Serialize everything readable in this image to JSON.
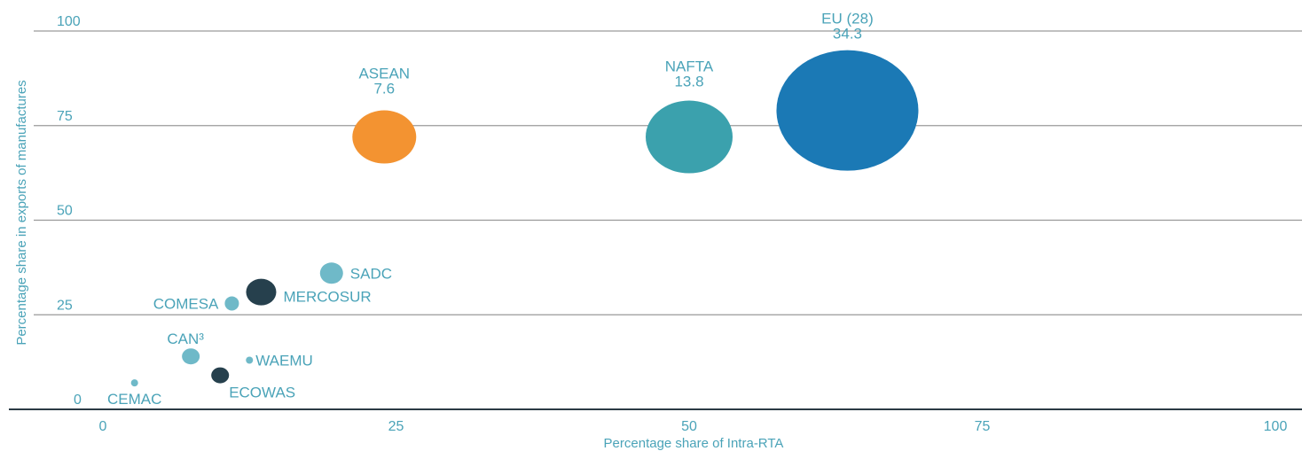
{
  "chart_data": {
    "type": "scatter",
    "xlabel": "Percentage share of Intra-RTA",
    "ylabel": "Percentage share in exports of manufactures",
    "xlim": [
      0,
      100
    ],
    "ylim": [
      0,
      100
    ],
    "xticks": [
      "0",
      "25",
      "50",
      "75",
      "100"
    ],
    "yticks": [
      "0",
      "25",
      "50",
      "75",
      "100"
    ],
    "grid": "horizontal",
    "points": [
      {
        "name": "EU (28)",
        "x": 63.5,
        "y": 79,
        "size": "34.3",
        "color": "#1b79b5"
      },
      {
        "name": "NAFTA",
        "x": 50,
        "y": 72,
        "size": "13.8",
        "color": "#3ba1ad"
      },
      {
        "name": "ASEAN",
        "x": 24,
        "y": 72,
        "size": "7.6",
        "color": "#f39331"
      },
      {
        "name": "SADC",
        "x": 19.5,
        "y": 36,
        "color": "#6fb9c8"
      },
      {
        "name": "MERCOSUR",
        "x": 13.5,
        "y": 31,
        "color": "#26404d"
      },
      {
        "name": "COMESA",
        "x": 11,
        "y": 28,
        "color": "#6fb9c8"
      },
      {
        "name": "CAN³",
        "x": 7.5,
        "y": 14,
        "color": "#6fb9c8"
      },
      {
        "name": "WAEMU",
        "x": 12.5,
        "y": 13,
        "color": "#6fb9c8"
      },
      {
        "name": "ECOWAS",
        "x": 10,
        "y": 9,
        "color": "#26404d"
      },
      {
        "name": "CEMAC",
        "x": 2.7,
        "y": 7,
        "color": "#6fb9c8"
      }
    ]
  }
}
